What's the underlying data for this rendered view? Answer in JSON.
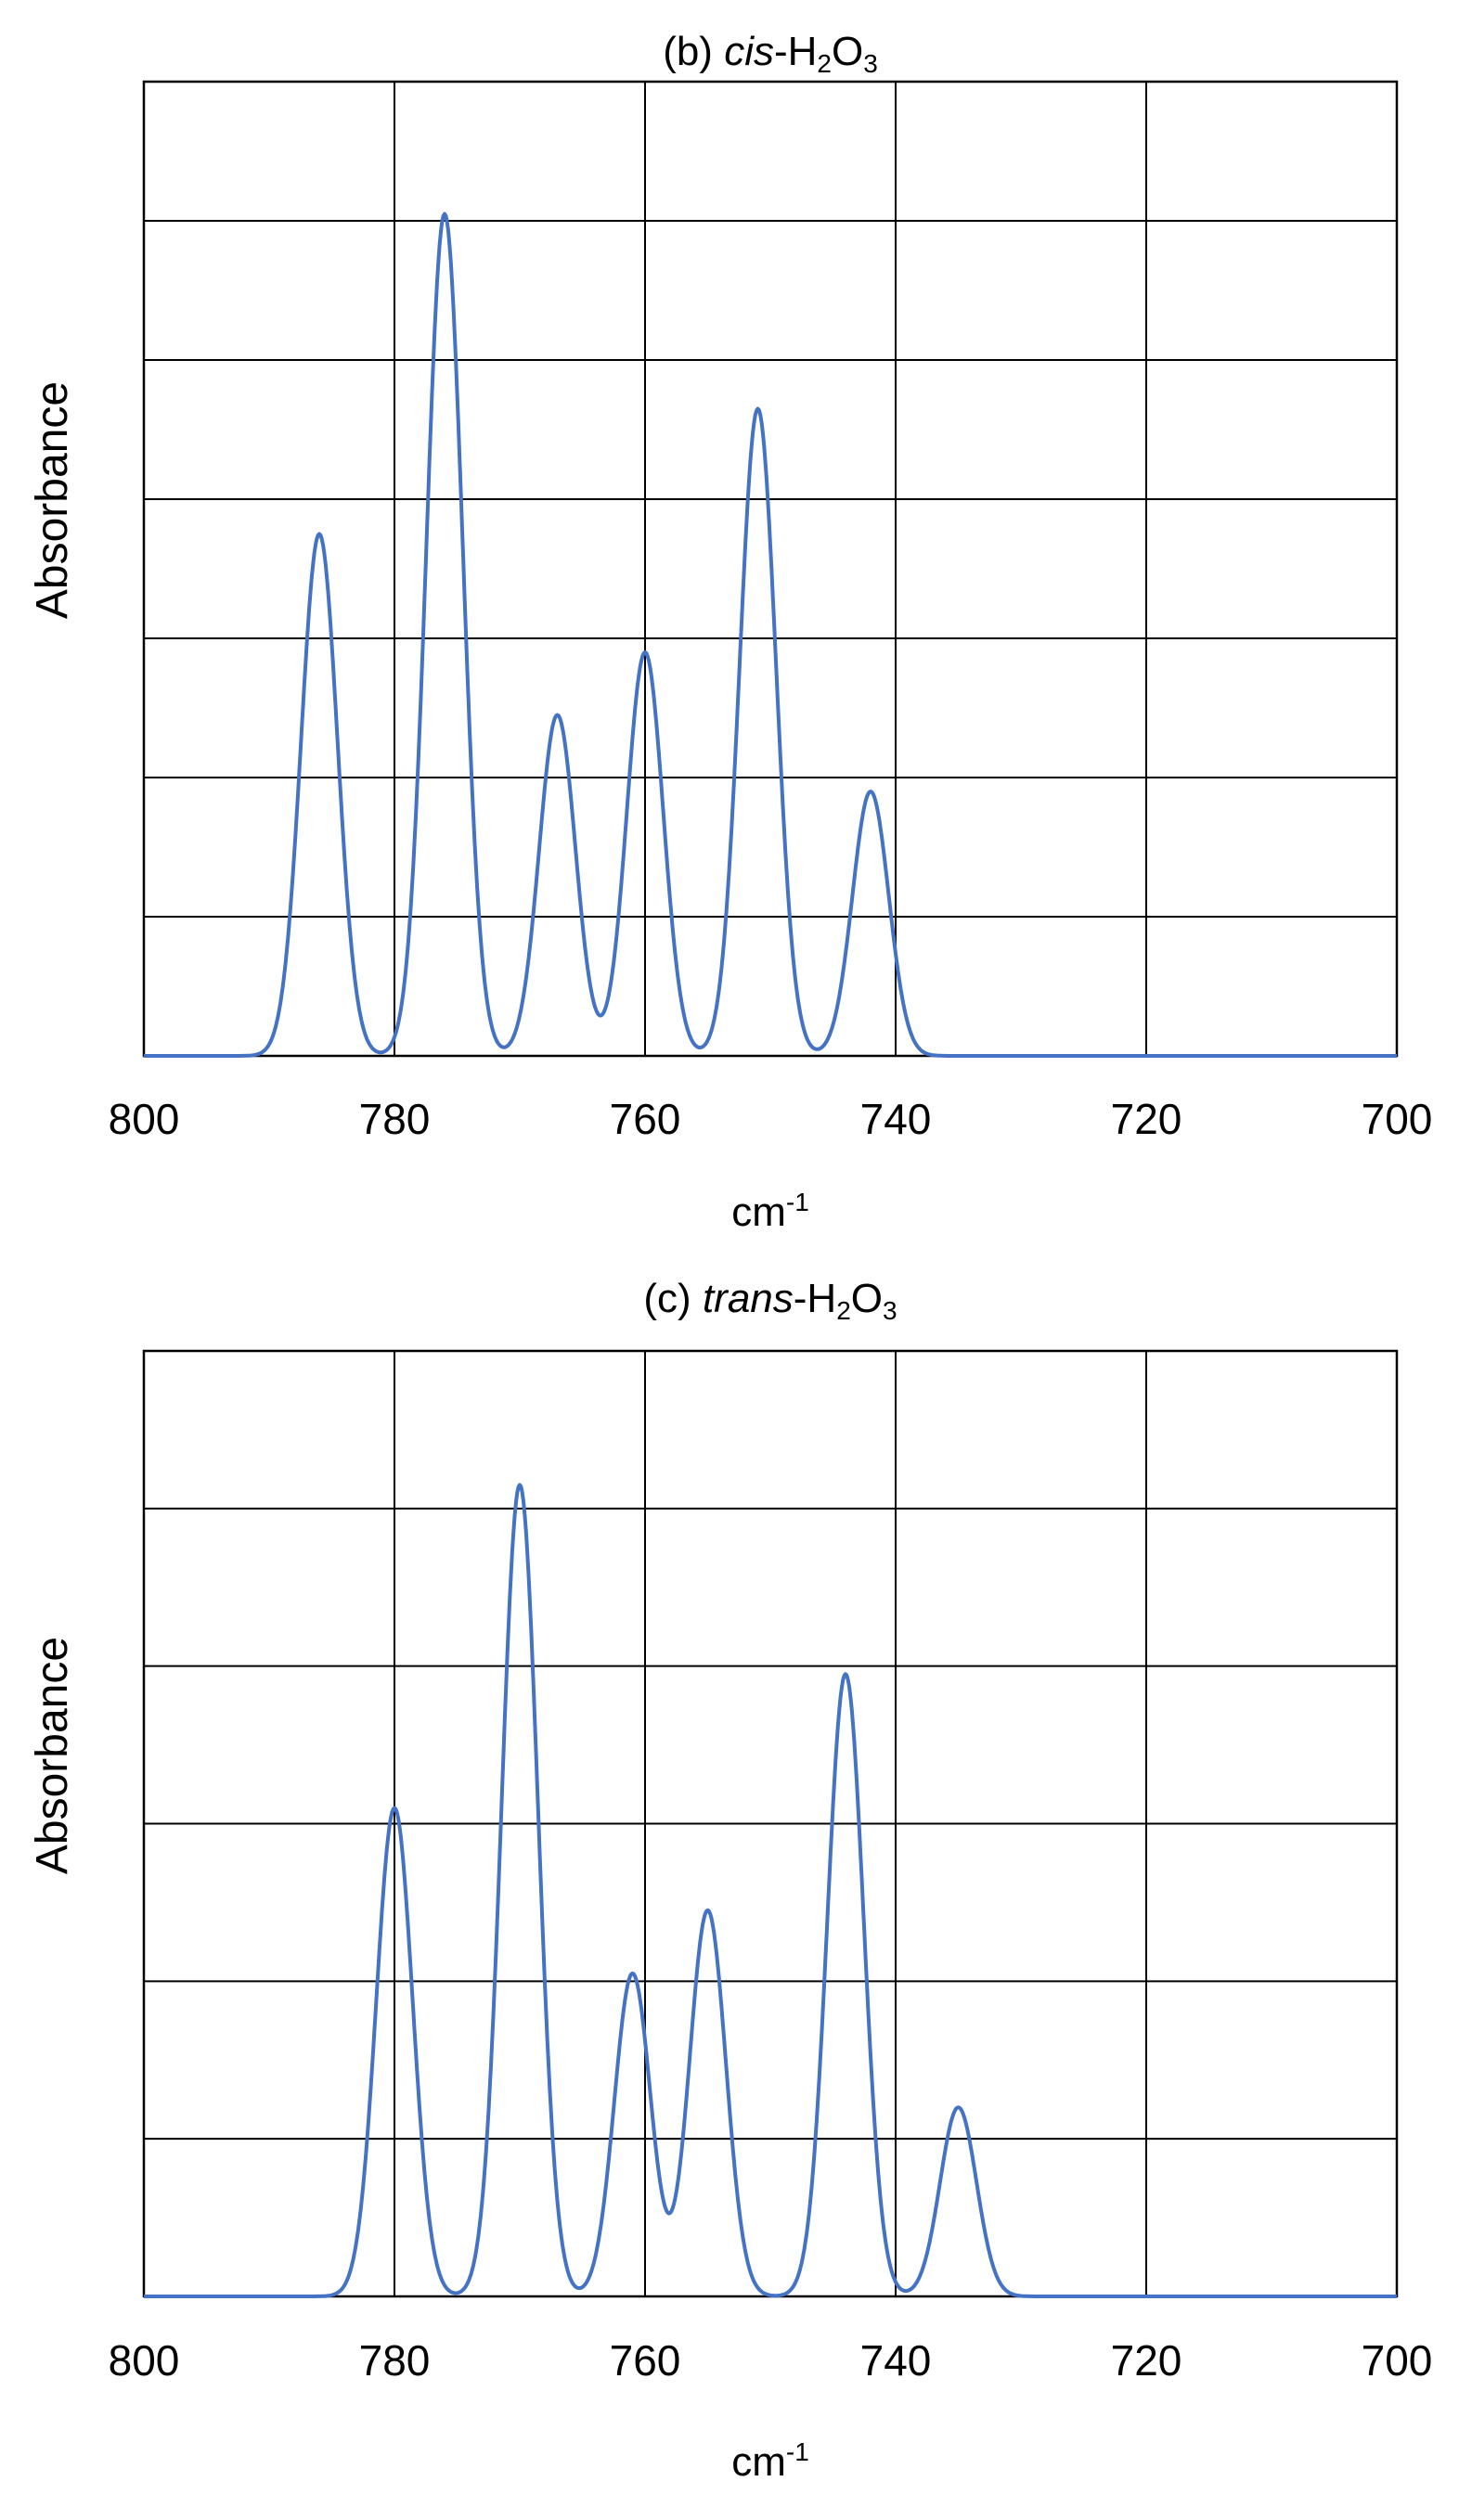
{
  "chart_data": [
    {
      "type": "line",
      "title": {
        "prefix": "(b) ",
        "italic": "cis",
        "suffix": "-H",
        "sub1": "2",
        "mid": "O",
        "sub2": "3"
      },
      "xlabel": {
        "base": "cm",
        "sup": "-1"
      },
      "ylabel": "Absorbance",
      "xlim": [
        800,
        700
      ],
      "x_ticks": [
        "800",
        "780",
        "760",
        "740",
        "720",
        "700"
      ],
      "y_divisions": 7,
      "ylim": [
        0,
        7
      ],
      "grid": true,
      "line_color": "#4472C4",
      "series": [
        {
          "peaks": [
            {
              "x": 786,
              "y": 3.75
            },
            {
              "x": 776,
              "y": 6.05
            },
            {
              "x": 767,
              "y": 2.45
            },
            {
              "x": 760,
              "y": 2.9
            },
            {
              "x": 751,
              "y": 4.65
            },
            {
              "x": 742,
              "y": 1.9
            }
          ]
        }
      ]
    },
    {
      "type": "line",
      "title": {
        "prefix": "(c) ",
        "italic": "trans",
        "suffix": "-H",
        "sub1": "2",
        "mid": "O",
        "sub2": "3"
      },
      "xlabel": {
        "base": "cm",
        "sup": "-1"
      },
      "ylabel": "Absorbance",
      "xlim": [
        800,
        700
      ],
      "x_ticks": [
        "800",
        "780",
        "760",
        "740",
        "720",
        "700"
      ],
      "y_divisions": 6,
      "ylim": [
        0,
        6
      ],
      "grid": true,
      "line_color": "#4472C4",
      "series": [
        {
          "peaks": [
            {
              "x": 780,
              "y": 3.1
            },
            {
              "x": 770,
              "y": 5.15
            },
            {
              "x": 761,
              "y": 2.05
            },
            {
              "x": 755,
              "y": 2.45
            },
            {
              "x": 744,
              "y": 3.95
            },
            {
              "x": 735,
              "y": 1.2
            }
          ]
        }
      ]
    }
  ]
}
